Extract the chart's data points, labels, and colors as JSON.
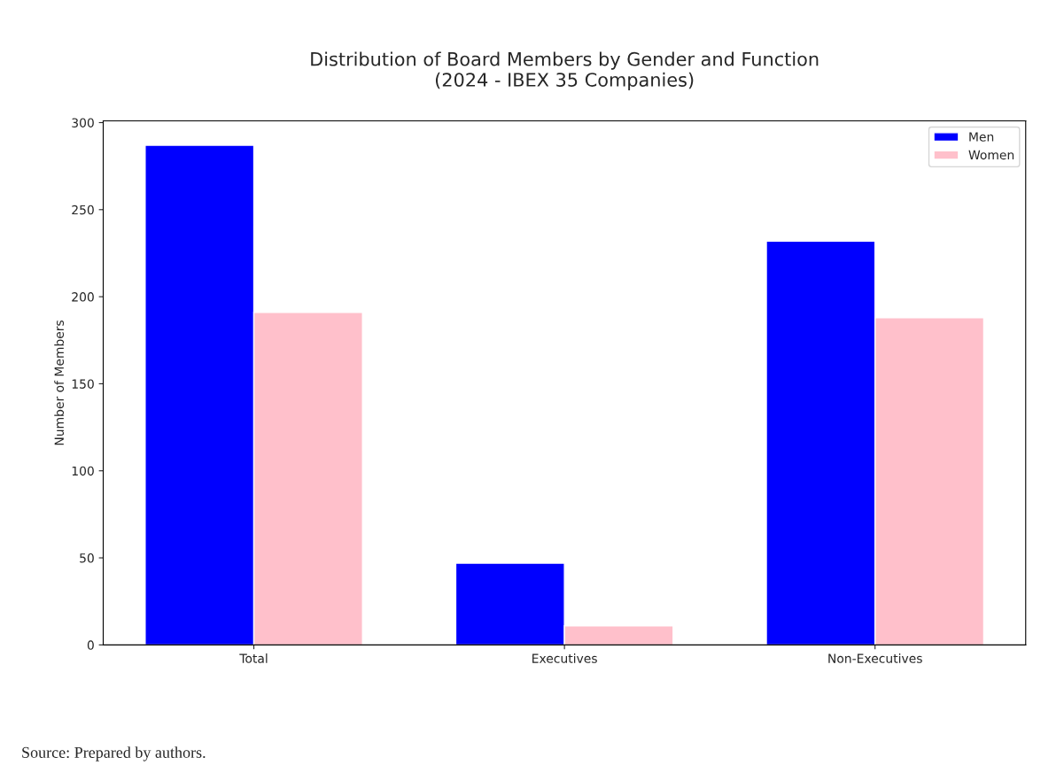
{
  "chart_data": {
    "type": "bar",
    "title": "Distribution of Board Members by Gender and Function\n(2024 - IBEX 35 Companies)",
    "ylabel": "Number of Members",
    "categories": [
      "Total",
      "Executives",
      "Non-Executives"
    ],
    "series": [
      {
        "name": "Men",
        "color": "#0000ff",
        "values": [
          287,
          47,
          232
        ]
      },
      {
        "name": "Women",
        "color": "#ffc0cb",
        "values": [
          191,
          11,
          188
        ]
      }
    ],
    "ylim": [
      0,
      301
    ],
    "yticks": [
      0,
      50,
      100,
      150,
      200,
      250,
      300
    ],
    "grid": false,
    "legend": "top right",
    "annotations": [
      "Source: Prepared by authors."
    ]
  }
}
